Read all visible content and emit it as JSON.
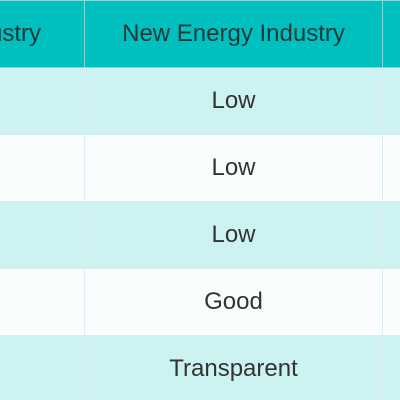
{
  "colors": {
    "header_bg": "#00bfbf",
    "header_text": "#1a3a3a",
    "row_tint": "#cdf2f2",
    "row_plain": "#fafdfd",
    "border": "#d8eeee"
  },
  "table": {
    "headers": [
      "ustry",
      "New Energy Industry",
      ""
    ],
    "rows": [
      [
        "",
        "Low",
        ""
      ],
      [
        "",
        "Low",
        ""
      ],
      [
        "",
        "Low",
        ""
      ],
      [
        "",
        "Good",
        ""
      ],
      [
        "",
        "Transparent",
        ""
      ]
    ]
  }
}
